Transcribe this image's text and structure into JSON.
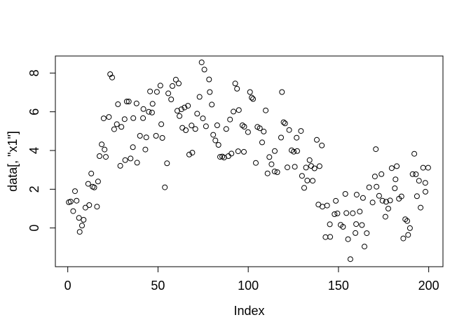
{
  "figure": {
    "background": "#ffffff",
    "foreground": "#000000",
    "marker": "open-circle"
  },
  "chart_data": {
    "type": "scatter",
    "title": "",
    "xlabel": "Index",
    "ylabel": "data[, \"x1\"]",
    "grid": false,
    "legend": null,
    "xlim": [
      -6.87,
      207.9
    ],
    "ylim": [
      -2.0,
      8.88
    ],
    "xticks": [
      0,
      50,
      100,
      150,
      200
    ],
    "yticks": [
      0,
      2,
      4,
      6,
      8
    ],
    "points": [
      [
        0.6,
        1.33
      ],
      [
        1.6,
        1.36
      ],
      [
        3,
        0.87
      ],
      [
        4,
        1.9
      ],
      [
        4.9,
        1.41
      ],
      [
        6.2,
        0.52
      ],
      [
        6.6,
        -0.2
      ],
      [
        7.9,
        0.12
      ],
      [
        8.8,
        0.42
      ],
      [
        9.8,
        1.05
      ],
      [
        11.3,
        2.28
      ],
      [
        11.9,
        1.18
      ],
      [
        13,
        2.81
      ],
      [
        13.8,
        2.13
      ],
      [
        14.7,
        2.09
      ],
      [
        16.2,
        1.1
      ],
      [
        16.8,
        2.4
      ],
      [
        17.6,
        3.71
      ],
      [
        18.8,
        4.32
      ],
      [
        19.9,
        5.66
      ],
      [
        20.4,
        4.05
      ],
      [
        21.1,
        3.67
      ],
      [
        22.8,
        5.73
      ],
      [
        23.5,
        7.94
      ],
      [
        24.6,
        7.77
      ],
      [
        25.7,
        5.1
      ],
      [
        27.2,
        5.36
      ],
      [
        27.8,
        6.39
      ],
      [
        29.1,
        3.21
      ],
      [
        29.7,
        5.22
      ],
      [
        31.5,
        5.62
      ],
      [
        31.8,
        3.5
      ],
      [
        32.7,
        6.53
      ],
      [
        33.8,
        6.53
      ],
      [
        34.8,
        3.59
      ],
      [
        36.1,
        4.17
      ],
      [
        36.3,
        5.67
      ],
      [
        38.1,
        6.43
      ],
      [
        38.4,
        3.37
      ],
      [
        40,
        4.76
      ],
      [
        41.7,
        5.67
      ],
      [
        41.9,
        6.14
      ],
      [
        43,
        4.05
      ],
      [
        43.5,
        4.68
      ],
      [
        44.9,
        6
      ],
      [
        45.6,
        7.05
      ],
      [
        46.7,
        5.96
      ],
      [
        47,
        6.41
      ],
      [
        48.9,
        4.76
      ],
      [
        49.4,
        7.03
      ],
      [
        51.3,
        7.35
      ],
      [
        51.8,
        5.36
      ],
      [
        52.4,
        4.65
      ],
      [
        53.8,
        2.1
      ],
      [
        55,
        3.34
      ],
      [
        55.7,
        6.95
      ],
      [
        57.3,
        6.64
      ],
      [
        58,
        7.33
      ],
      [
        59.9,
        7.66
      ],
      [
        60.7,
        6.05
      ],
      [
        61.5,
        7.46
      ],
      [
        61.9,
        5.78
      ],
      [
        63,
        6.13
      ],
      [
        63.5,
        5.17
      ],
      [
        64.7,
        6.22
      ],
      [
        65.4,
        5.05
      ],
      [
        66.6,
        6.31
      ],
      [
        67.3,
        3.79
      ],
      [
        68.6,
        5.29
      ],
      [
        69,
        3.89
      ],
      [
        70.7,
        5.11
      ],
      [
        71.7,
        5.9
      ],
      [
        73,
        6.77
      ],
      [
        74.2,
        8.55
      ],
      [
        74.9,
        5.66
      ],
      [
        75.7,
        8.18
      ],
      [
        76.6,
        5.25
      ],
      [
        78.3,
        7.67
      ],
      [
        78.7,
        7.02
      ],
      [
        79.8,
        6.37
      ],
      [
        80.6,
        4.81
      ],
      [
        81.8,
        4.52
      ],
      [
        82.8,
        5.3
      ],
      [
        83.5,
        4.29
      ],
      [
        84.4,
        3.67
      ],
      [
        85.6,
        3.69
      ],
      [
        86.6,
        3.64
      ],
      [
        87.8,
        5.11
      ],
      [
        89,
        3.71
      ],
      [
        89.9,
        5.6
      ],
      [
        90.7,
        3.84
      ],
      [
        91.8,
        6.01
      ],
      [
        92.8,
        7.46
      ],
      [
        93.8,
        7.19
      ],
      [
        94.4,
        3.96
      ],
      [
        94.8,
        6.09
      ],
      [
        96.8,
        5.3
      ],
      [
        97.8,
        5.23
      ],
      [
        97.6,
        3.93
      ],
      [
        99.9,
        4.95
      ],
      [
        101,
        7.02
      ],
      [
        101.9,
        6.73
      ],
      [
        102.7,
        6.66
      ],
      [
        104.2,
        3.36
      ],
      [
        105.1,
        5.22
      ],
      [
        106.4,
        5.15
      ],
      [
        107.7,
        4.42
      ],
      [
        108.6,
        4.98
      ],
      [
        109.7,
        6.07
      ],
      [
        110.7,
        2.82
      ],
      [
        111.7,
        3.66
      ],
      [
        112.9,
        3.29
      ],
      [
        114.6,
        2.92
      ],
      [
        114.7,
        3.97
      ],
      [
        116.1,
        2.88
      ],
      [
        118.2,
        4.67
      ],
      [
        118.7,
        7.02
      ],
      [
        119.6,
        5.46
      ],
      [
        120.4,
        5.4
      ],
      [
        121.7,
        3.13
      ],
      [
        122.7,
        5.06
      ],
      [
        124,
        4.01
      ],
      [
        125.2,
        3.94
      ],
      [
        125.8,
        3.16
      ],
      [
        126.8,
        4.66
      ],
      [
        127.1,
        3.97
      ],
      [
        129.2,
        5.01
      ],
      [
        129.8,
        2.69
      ],
      [
        131,
        2.07
      ],
      [
        132,
        3.12
      ],
      [
        132.7,
        2.45
      ],
      [
        134,
        3.5
      ],
      [
        134.9,
        3.2
      ],
      [
        135.7,
        2.44
      ],
      [
        136.7,
        3.08
      ],
      [
        138,
        4.55
      ],
      [
        138.9,
        1.21
      ],
      [
        139.5,
        3.19
      ],
      [
        140.8,
        4.26
      ],
      [
        141.1,
        1.1
      ],
      [
        142.8,
        -0.47
      ],
      [
        143.7,
        1.16
      ],
      [
        145.2,
        0.19
      ],
      [
        145.4,
        -0.46
      ],
      [
        147.8,
        0.71
      ],
      [
        148.5,
        1.4
      ],
      [
        149.4,
        0.75
      ],
      [
        151.2,
        0.16
      ],
      [
        152.5,
        0.06
      ],
      [
        153.8,
        1.76
      ],
      [
        154.4,
        0.77
      ],
      [
        155.3,
        -0.58
      ],
      [
        156.6,
        -1.61
      ],
      [
        157.9,
        0.76
      ],
      [
        159.4,
        -0.26
      ],
      [
        159.8,
        0.2
      ],
      [
        160.1,
        1.72
      ],
      [
        161.8,
        0.85
      ],
      [
        163,
        0.15
      ],
      [
        163.6,
        1.55
      ],
      [
        164.4,
        -0.96
      ],
      [
        165.7,
        -0.27
      ],
      [
        167,
        2.1
      ],
      [
        168.9,
        1.32
      ],
      [
        170.2,
        2.66
      ],
      [
        170.7,
        4.07
      ],
      [
        171.1,
        2.13
      ],
      [
        172.5,
        1.66
      ],
      [
        173.8,
        2.78
      ],
      [
        174.4,
        1.41
      ],
      [
        176,
        0.58
      ],
      [
        176.4,
        1.35
      ],
      [
        177.6,
        1
      ],
      [
        178.6,
        1.42
      ],
      [
        179.5,
        3.09
      ],
      [
        181.2,
        2.05
      ],
      [
        181.6,
        2.51
      ],
      [
        182.3,
        3.19
      ],
      [
        183.5,
        1.51
      ],
      [
        184.9,
        1.63
      ],
      [
        185.9,
        -0.54
      ],
      [
        187,
        0.45
      ],
      [
        188.1,
        0.36
      ],
      [
        188.6,
        -0.36
      ],
      [
        189.6,
        -0.01
      ],
      [
        191.1,
        2.78
      ],
      [
        192,
        3.83
      ],
      [
        192.9,
        2.77
      ],
      [
        193.5,
        1.64
      ],
      [
        194.6,
        2.44
      ],
      [
        195.5,
        1.05
      ],
      [
        196.9,
        3.11
      ],
      [
        198.1,
        2.33
      ],
      [
        198.2,
        1.87
      ],
      [
        199.7,
        3.11
      ]
    ]
  }
}
